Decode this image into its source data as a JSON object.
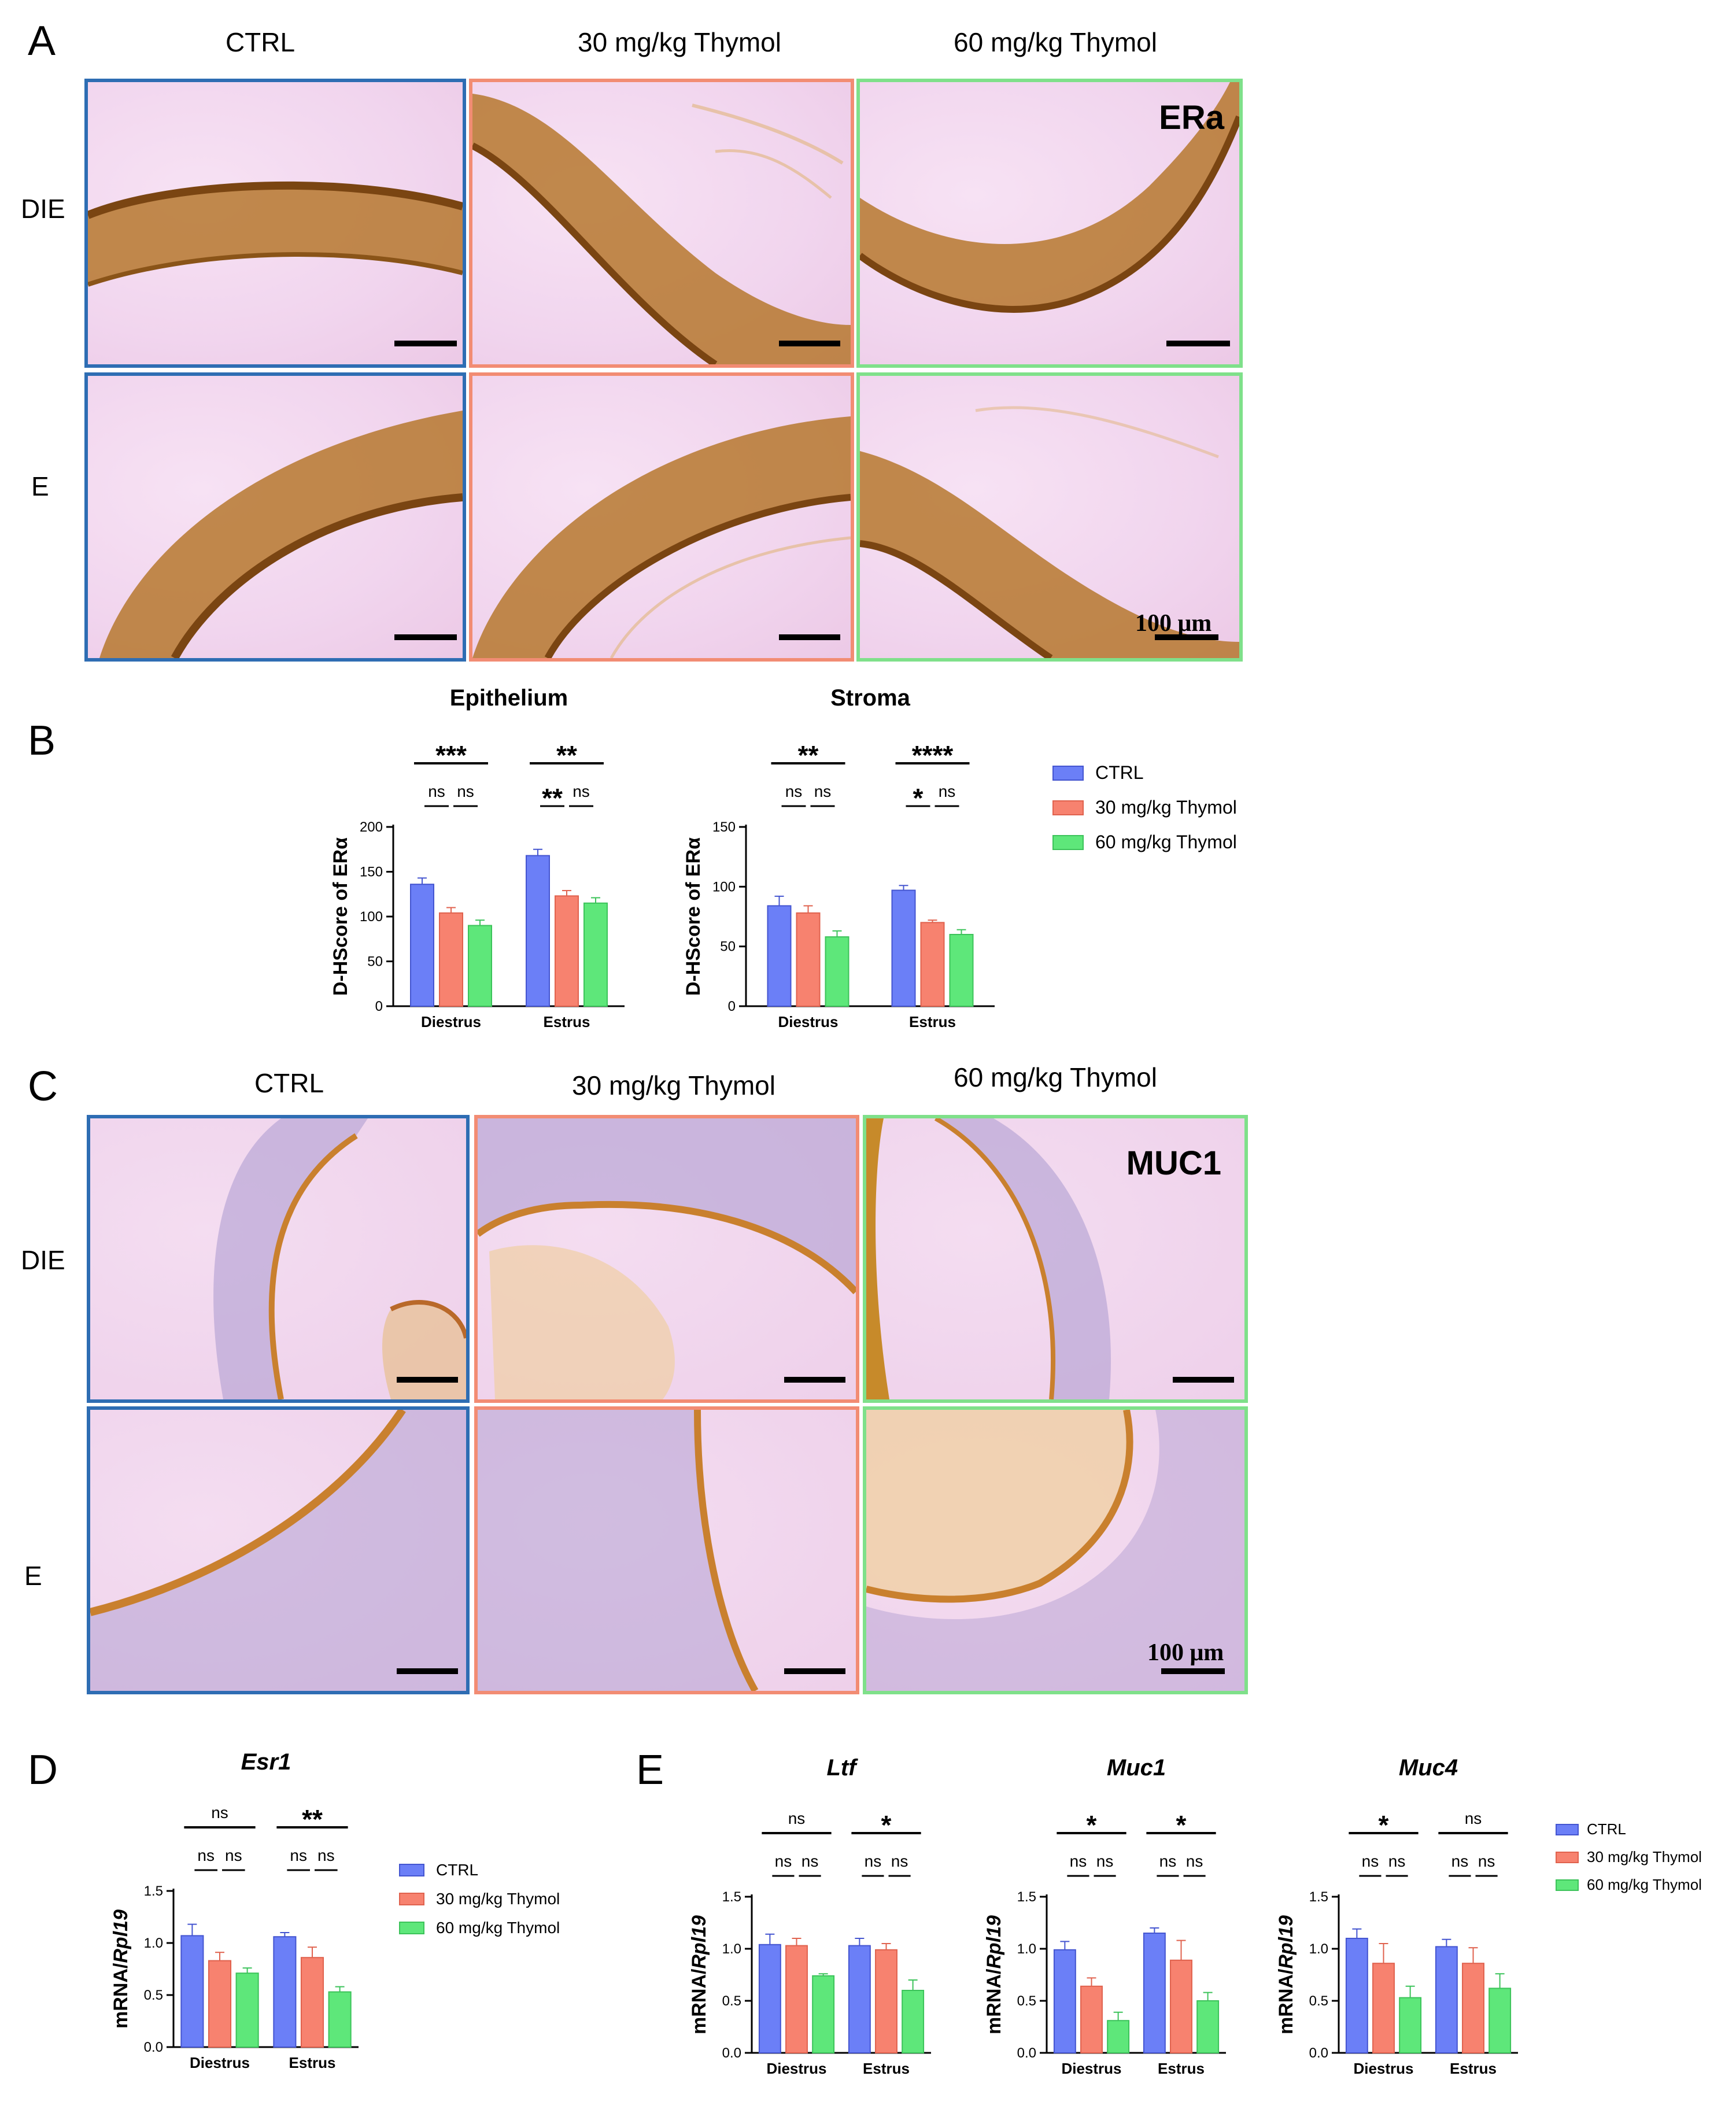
{
  "colors": {
    "ctrl": "#6b7ff7",
    "thymol30": "#f7826f",
    "thymol60": "#5ee77a",
    "border_ctrl": "#2e6db3",
    "border_30": "#f28c73",
    "border_60": "#7fe08a"
  },
  "panelA": {
    "letter": "A",
    "columns": [
      "CTRL",
      "30 mg/kg Thymol",
      "60 mg/kg Thymol"
    ],
    "rows": [
      "DIE",
      "E"
    ],
    "stain": "ERa",
    "scale_bar": "100 μm"
  },
  "panelB": {
    "letter": "B"
  },
  "panelC": {
    "letter": "C",
    "columns": [
      "CTRL",
      "30 mg/kg Thymol",
      "60 mg/kg Thymol"
    ],
    "rows": [
      "DIE",
      "E"
    ],
    "stain": "MUC1",
    "scale_bar": "100 μm"
  },
  "panelD": {
    "letter": "D"
  },
  "panelE": {
    "letter": "E"
  },
  "legend": [
    "CTRL",
    "30 mg/kg Thymol",
    "60 mg/kg Thymol"
  ],
  "chart_data": [
    {
      "id": "B-epithelium",
      "type": "bar",
      "title": "Epithelium",
      "italic_title": false,
      "ylabel": "D-HScore of ERα",
      "ylabel_main": "D-HScore of ERα",
      "ylabel_italic": "",
      "ylim": [
        0,
        200
      ],
      "yticks": [
        "0",
        "50",
        "100",
        "150",
        "200"
      ],
      "categories": [
        "Diestrus",
        "Estrus"
      ],
      "series": [
        {
          "name": "CTRL",
          "values": [
            136,
            168
          ],
          "errors": [
            7,
            7
          ]
        },
        {
          "name": "30 mg/kg Thymol",
          "values": [
            104,
            123
          ],
          "errors": [
            6,
            6
          ]
        },
        {
          "name": "60 mg/kg Thymol",
          "values": [
            90,
            115
          ],
          "errors": [
            6,
            6
          ]
        }
      ],
      "significance": {
        "groups": [
          {
            "overall": "***",
            "pair1": "ns",
            "pair2": "ns"
          },
          {
            "overall": "**",
            "pair1": "**",
            "pair2": "ns"
          }
        ]
      }
    },
    {
      "id": "B-stroma",
      "type": "bar",
      "title": "Stroma",
      "italic_title": false,
      "ylabel": "D-HScore of ERα",
      "ylabel_main": "D-HScore of ERα",
      "ylabel_italic": "",
      "ylim": [
        0,
        150
      ],
      "yticks": [
        "0",
        "50",
        "100",
        "150"
      ],
      "categories": [
        "Diestrus",
        "Estrus"
      ],
      "series": [
        {
          "name": "CTRL",
          "values": [
            84,
            97
          ],
          "errors": [
            8,
            4
          ]
        },
        {
          "name": "30 mg/kg Thymol",
          "values": [
            78,
            70
          ],
          "errors": [
            6,
            2
          ]
        },
        {
          "name": "60 mg/kg Thymol",
          "values": [
            58,
            60
          ],
          "errors": [
            5,
            4
          ]
        }
      ],
      "significance": {
        "groups": [
          {
            "overall": "**",
            "pair1": "ns",
            "pair2": "ns"
          },
          {
            "overall": "****",
            "pair1": "*",
            "pair2": "ns"
          }
        ]
      }
    },
    {
      "id": "D-Esr1",
      "type": "bar",
      "title": "Esr1",
      "italic_title": true,
      "ylabel": "mRNA/Rpl19",
      "ylabel_main": "mRNA/",
      "ylabel_italic": "Rpl19",
      "ylim": [
        0,
        1.5
      ],
      "yticks": [
        "0.0",
        "0.5",
        "1.0",
        "1.5"
      ],
      "categories": [
        "Diestrus",
        "Estrus"
      ],
      "series": [
        {
          "name": "CTRL",
          "values": [
            1.07,
            1.06
          ],
          "errors": [
            0.11,
            0.04
          ]
        },
        {
          "name": "30 mg/kg Thymol",
          "values": [
            0.83,
            0.86
          ],
          "errors": [
            0.08,
            0.1
          ]
        },
        {
          "name": "60 mg/kg Thymol",
          "values": [
            0.71,
            0.53
          ],
          "errors": [
            0.05,
            0.05
          ]
        }
      ],
      "significance": {
        "groups": [
          {
            "overall": "ns",
            "pair1": "ns",
            "pair2": "ns"
          },
          {
            "overall": "**",
            "pair1": "ns",
            "pair2": "ns"
          }
        ]
      }
    },
    {
      "id": "E-Ltf",
      "type": "bar",
      "title": "Ltf",
      "italic_title": true,
      "ylabel": "mRNA/Rpl19",
      "ylabel_main": "mRNA/",
      "ylabel_italic": "Rpl19",
      "ylim": [
        0,
        1.5
      ],
      "yticks": [
        "0.0",
        "0.5",
        "1.0",
        "1.5"
      ],
      "categories": [
        "Diestrus",
        "Estrus"
      ],
      "series": [
        {
          "name": "CTRL",
          "values": [
            1.04,
            1.03
          ],
          "errors": [
            0.1,
            0.07
          ]
        },
        {
          "name": "30 mg/kg Thymol",
          "values": [
            1.03,
            0.99
          ],
          "errors": [
            0.07,
            0.06
          ]
        },
        {
          "name": "60 mg/kg Thymol",
          "values": [
            0.74,
            0.6
          ],
          "errors": [
            0.02,
            0.1
          ]
        }
      ],
      "significance": {
        "groups": [
          {
            "overall": "ns",
            "pair1": "ns",
            "pair2": "ns"
          },
          {
            "overall": "*",
            "pair1": "ns",
            "pair2": "ns"
          }
        ]
      }
    },
    {
      "id": "E-Muc1",
      "type": "bar",
      "title": "Muc1",
      "italic_title": true,
      "ylabel": "mRNA/Rpl19",
      "ylabel_main": "mRNA/",
      "ylabel_italic": "Rpl19",
      "ylim": [
        0,
        1.5
      ],
      "yticks": [
        "0.0",
        "0.5",
        "1.0",
        "1.5"
      ],
      "categories": [
        "Diestrus",
        "Estrus"
      ],
      "series": [
        {
          "name": "CTRL",
          "values": [
            0.99,
            1.15
          ],
          "errors": [
            0.08,
            0.05
          ]
        },
        {
          "name": "30 mg/kg Thymol",
          "values": [
            0.64,
            0.89
          ],
          "errors": [
            0.08,
            0.19
          ]
        },
        {
          "name": "60 mg/kg Thymol",
          "values": [
            0.31,
            0.5
          ],
          "errors": [
            0.08,
            0.08
          ]
        }
      ],
      "significance": {
        "groups": [
          {
            "overall": "*",
            "pair1": "ns",
            "pair2": "ns"
          },
          {
            "overall": "*",
            "pair1": "ns",
            "pair2": "ns"
          }
        ]
      }
    },
    {
      "id": "E-Muc4",
      "type": "bar",
      "title": "Muc4",
      "italic_title": true,
      "ylabel": "mRNA/Rpl19",
      "ylabel_main": "mRNA/",
      "ylabel_italic": "Rpl19",
      "ylim": [
        0,
        1.5
      ],
      "yticks": [
        "0.0",
        "0.5",
        "1.0",
        "1.5"
      ],
      "categories": [
        "Diestrus",
        "Estrus"
      ],
      "series": [
        {
          "name": "CTRL",
          "values": [
            1.1,
            1.02
          ],
          "errors": [
            0.09,
            0.07
          ]
        },
        {
          "name": "30 mg/kg Thymol",
          "values": [
            0.86,
            0.86
          ],
          "errors": [
            0.19,
            0.15
          ]
        },
        {
          "name": "60 mg/kg Thymol",
          "values": [
            0.53,
            0.62
          ],
          "errors": [
            0.11,
            0.14
          ]
        }
      ],
      "significance": {
        "groups": [
          {
            "overall": "*",
            "pair1": "ns",
            "pair2": "ns"
          },
          {
            "overall": "ns",
            "pair1": "ns",
            "pair2": "ns"
          }
        ]
      }
    }
  ]
}
